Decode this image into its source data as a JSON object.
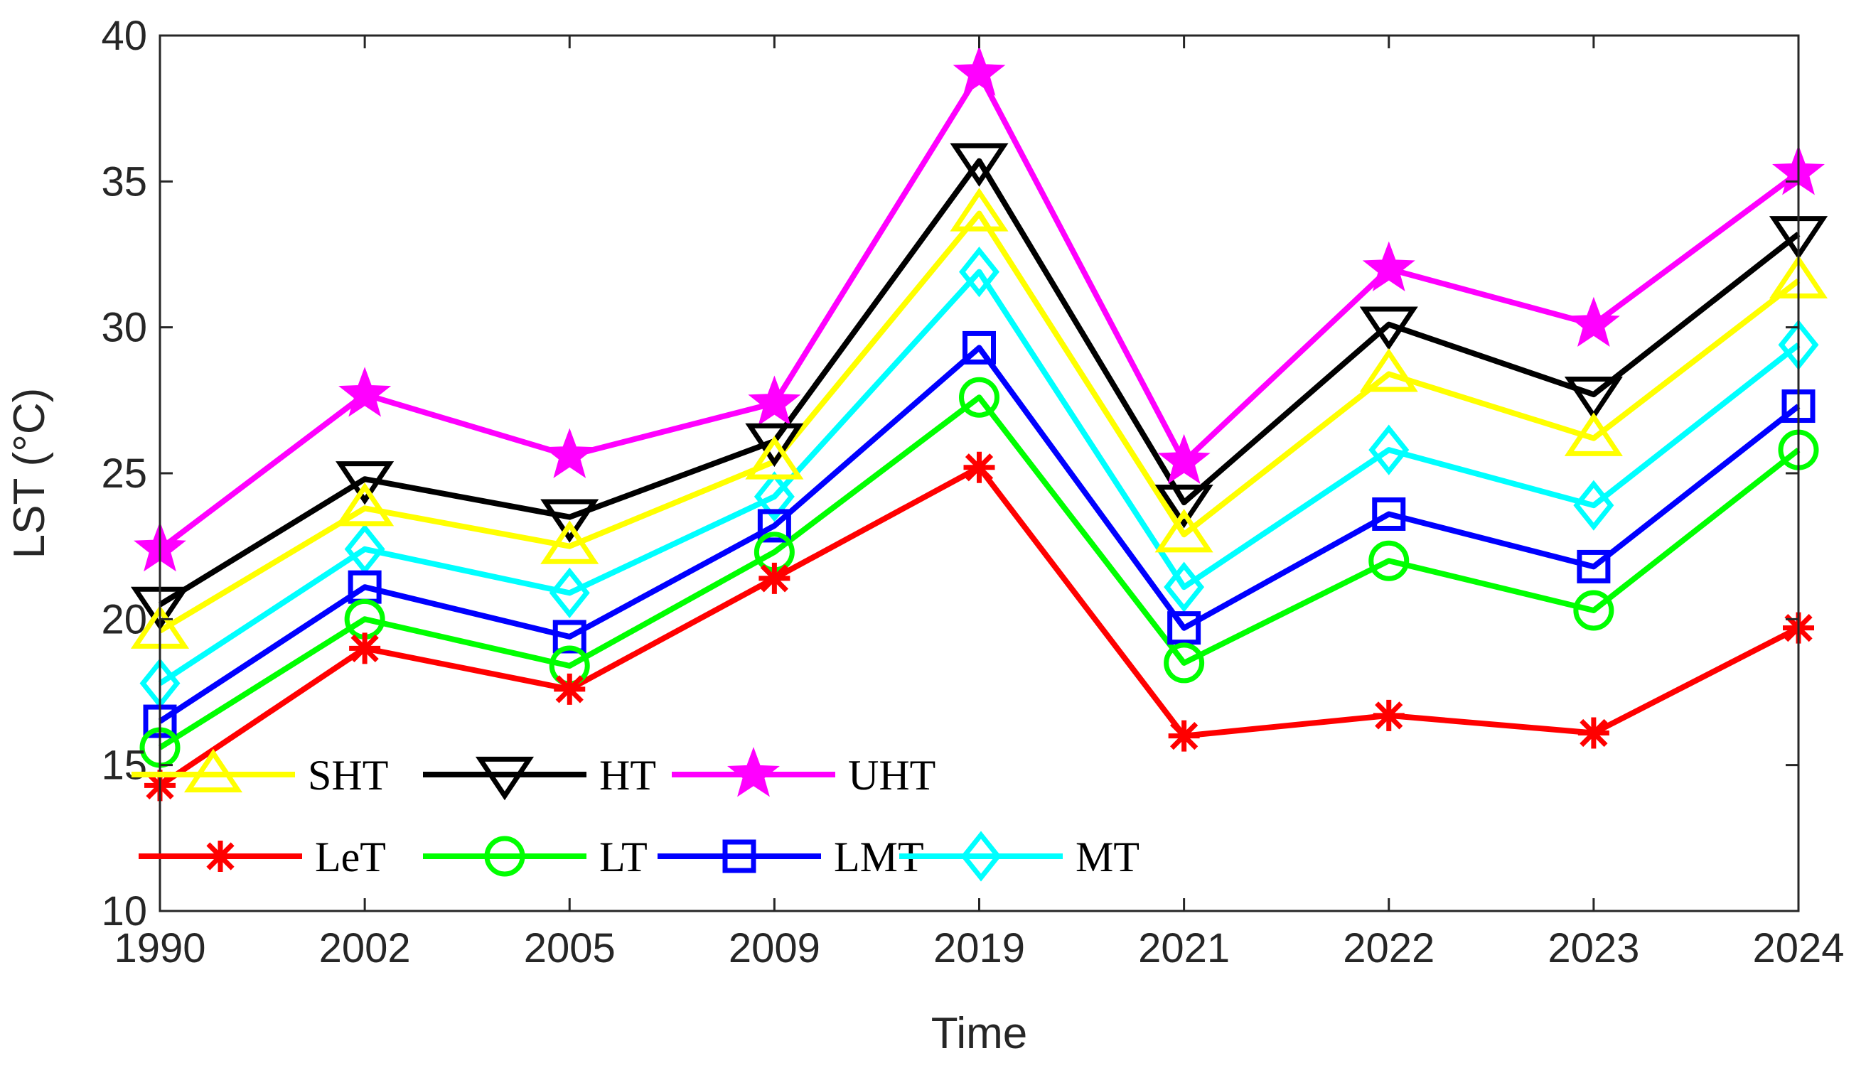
{
  "chart_data": {
    "type": "line",
    "title": "",
    "xlabel": "Time",
    "ylabel": "LST (°C)",
    "ylim": [
      10,
      40
    ],
    "yticks": [
      10,
      15,
      20,
      25,
      30,
      35,
      40
    ],
    "categories": [
      "1990",
      "2002",
      "2005",
      "2009",
      "2019",
      "2021",
      "2022",
      "2023",
      "2024"
    ],
    "grid": false,
    "legend_position": "bottom-left",
    "series": [
      {
        "name": "SHT",
        "color": "#FFFF00",
        "marker": "triangle-up",
        "values": [
          19.6,
          23.8,
          22.5,
          25.4,
          33.9,
          22.9,
          28.4,
          26.2,
          31.6
        ]
      },
      {
        "name": "HT",
        "color": "#000000",
        "marker": "triangle-down",
        "values": [
          20.5,
          24.8,
          23.5,
          26.1,
          35.7,
          24.0,
          30.1,
          27.7,
          33.2
        ]
      },
      {
        "name": "UHT",
        "color": "#FF00FF",
        "marker": "star",
        "values": [
          22.4,
          27.7,
          25.6,
          27.4,
          38.7,
          25.4,
          32.0,
          30.1,
          35.3
        ]
      },
      {
        "name": "LeT",
        "color": "#FF0000",
        "marker": "asterisk",
        "values": [
          14.3,
          19.0,
          17.6,
          21.4,
          25.2,
          16.0,
          16.7,
          16.1,
          19.7
        ]
      },
      {
        "name": "LT",
        "color": "#00FF00",
        "marker": "circle",
        "values": [
          15.6,
          20.0,
          18.4,
          22.3,
          27.6,
          18.5,
          22.0,
          20.3,
          25.8
        ]
      },
      {
        "name": "LMT",
        "color": "#0000FF",
        "marker": "square",
        "values": [
          16.5,
          21.1,
          19.4,
          23.2,
          29.3,
          19.7,
          23.6,
          21.8,
          27.3
        ]
      },
      {
        "name": "MT",
        "color": "#00FFFF",
        "marker": "diamond",
        "values": [
          17.8,
          22.4,
          20.9,
          24.2,
          31.9,
          21.1,
          25.8,
          23.9,
          29.4
        ]
      }
    ]
  }
}
